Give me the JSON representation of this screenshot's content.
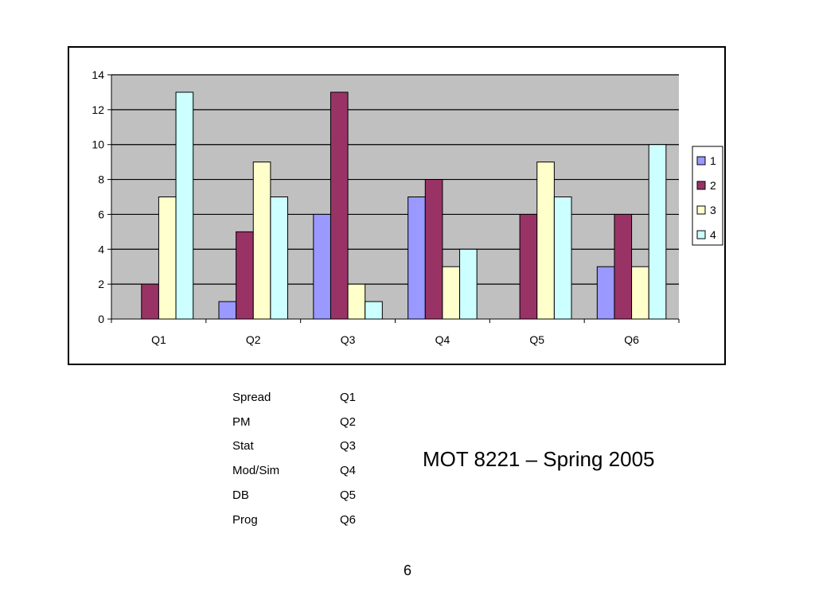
{
  "chart_data": {
    "type": "bar",
    "categories": [
      "Q1",
      "Q2",
      "Q3",
      "Q4",
      "Q5",
      "Q6"
    ],
    "series": [
      {
        "name": "1",
        "color": "#9999ff",
        "values": [
          0,
          1,
          6,
          7,
          0,
          3
        ]
      },
      {
        "name": "2",
        "color": "#993366",
        "values": [
          2,
          5,
          13,
          8,
          6,
          6
        ]
      },
      {
        "name": "3",
        "color": "#ffffcc",
        "values": [
          7,
          9,
          2,
          3,
          9,
          3
        ]
      },
      {
        "name": "4",
        "color": "#ccffff",
        "values": [
          13,
          7,
          1,
          4,
          7,
          10
        ]
      }
    ],
    "ylim": [
      0,
      14
    ],
    "yticks": [
      0,
      2,
      4,
      6,
      8,
      10,
      12,
      14
    ],
    "grid": true,
    "plot_background": "#c0c0c0",
    "legend_position": "right"
  },
  "mapping": [
    {
      "label": "Spread",
      "code": "Q1"
    },
    {
      "label": "PM",
      "code": "Q2"
    },
    {
      "label": "Stat",
      "code": "Q3"
    },
    {
      "label": "Mod/Sim",
      "code": "Q4"
    },
    {
      "label": "DB",
      "code": "Q5"
    },
    {
      "label": "Prog",
      "code": "Q6"
    }
  ],
  "slide": {
    "title": "MOT 8221 – Spring 2005",
    "page_number": "6"
  }
}
